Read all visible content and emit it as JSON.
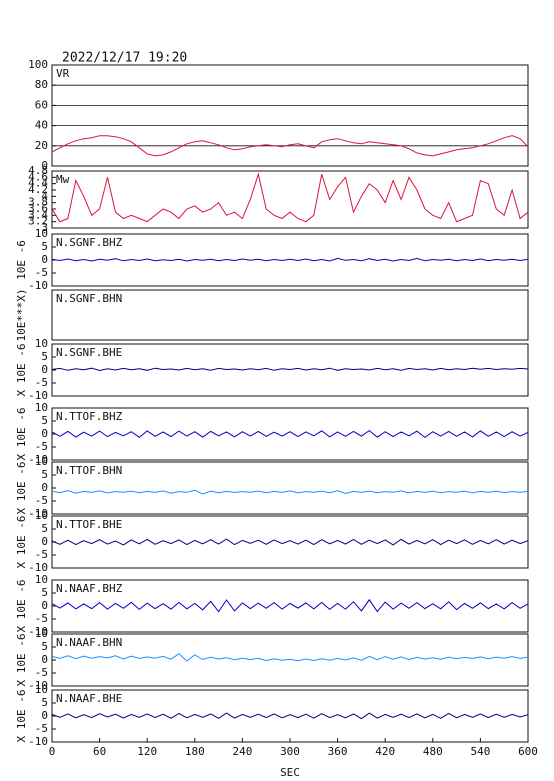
{
  "chart_data": [
    {
      "type": "line",
      "title": "2022/12/17 19:20",
      "label": "VR",
      "color": "#dc143c",
      "grid": true,
      "xlim": [
        0,
        600
      ],
      "ylim": [
        0,
        100
      ],
      "yticks": [
        0,
        20,
        40,
        60,
        80,
        100
      ],
      "x": [
        0,
        10,
        20,
        30,
        40,
        50,
        60,
        70,
        80,
        90,
        100,
        110,
        120,
        130,
        140,
        150,
        160,
        170,
        180,
        190,
        200,
        210,
        220,
        230,
        240,
        250,
        260,
        270,
        280,
        290,
        300,
        310,
        320,
        330,
        340,
        350,
        360,
        370,
        380,
        390,
        400,
        410,
        420,
        430,
        440,
        450,
        460,
        470,
        480,
        490,
        500,
        510,
        520,
        530,
        540,
        550,
        560,
        570,
        580,
        590,
        600
      ],
      "values": [
        14,
        18,
        22,
        25,
        27,
        28,
        30,
        30,
        29,
        27,
        24,
        18,
        12,
        10,
        11,
        14,
        18,
        22,
        24,
        25,
        23,
        21,
        18,
        16,
        17,
        19,
        20,
        21,
        20,
        19,
        21,
        22,
        20,
        18,
        24,
        26,
        27,
        25,
        23,
        22,
        24,
        23,
        22,
        21,
        20,
        17,
        13,
        11,
        10,
        12,
        14,
        16,
        17,
        18,
        20,
        22,
        25,
        28,
        30,
        27,
        19
      ]
    },
    {
      "type": "line",
      "label": "Mw",
      "color": "#dc143c",
      "xlim": [
        0,
        600
      ],
      "ylim": [
        3.0,
        4.8
      ],
      "yticks": [
        3.0,
        3.2,
        3.4,
        3.6,
        3.8,
        4.0,
        4.2,
        4.4,
        4.6,
        4.8
      ],
      "x": [
        0,
        10,
        20,
        30,
        40,
        50,
        60,
        70,
        80,
        90,
        100,
        110,
        120,
        130,
        140,
        150,
        160,
        170,
        180,
        190,
        200,
        210,
        220,
        230,
        240,
        250,
        260,
        270,
        280,
        290,
        300,
        310,
        320,
        330,
        340,
        350,
        360,
        370,
        380,
        390,
        400,
        410,
        420,
        430,
        440,
        450,
        460,
        470,
        480,
        490,
        500,
        510,
        520,
        530,
        540,
        550,
        560,
        570,
        580,
        590,
        600
      ],
      "values": [
        3.6,
        3.2,
        3.3,
        4.5,
        4.0,
        3.4,
        3.6,
        4.6,
        3.5,
        3.3,
        3.4,
        3.3,
        3.2,
        3.4,
        3.6,
        3.5,
        3.3,
        3.6,
        3.7,
        3.5,
        3.6,
        3.8,
        3.4,
        3.5,
        3.3,
        3.9,
        4.7,
        3.6,
        3.4,
        3.3,
        3.5,
        3.3,
        3.2,
        3.4,
        4.7,
        3.9,
        4.3,
        4.6,
        3.5,
        4.0,
        4.4,
        4.2,
        3.8,
        4.5,
        3.9,
        4.6,
        4.2,
        3.6,
        3.4,
        3.3,
        3.8,
        3.2,
        3.3,
        3.4,
        4.5,
        4.4,
        3.6,
        3.4,
        4.2,
        3.3,
        3.5
      ]
    },
    {
      "type": "line",
      "label": "N.SGNF.BHZ",
      "ylabel": "10E -6",
      "color": "#0000cd",
      "xlim": [
        0,
        600
      ],
      "ylim": [
        -10,
        10
      ],
      "yticks": [
        -10,
        -5,
        0,
        5,
        10
      ],
      "x": [
        0,
        10,
        20,
        30,
        40,
        50,
        60,
        70,
        80,
        90,
        100,
        110,
        120,
        130,
        140,
        150,
        160,
        170,
        180,
        190,
        200,
        210,
        220,
        230,
        240,
        250,
        260,
        270,
        280,
        290,
        300,
        310,
        320,
        330,
        340,
        350,
        360,
        370,
        380,
        390,
        400,
        410,
        420,
        430,
        440,
        450,
        460,
        470,
        480,
        490,
        500,
        510,
        520,
        530,
        540,
        550,
        560,
        570,
        580,
        590,
        600
      ],
      "values": [
        0.3,
        -0.2,
        0.4,
        -0.3,
        0.2,
        -0.4,
        0.3,
        -0.1,
        0.5,
        -0.3,
        0.2,
        -0.2,
        0.4,
        -0.3,
        0.1,
        -0.2,
        0.3,
        -0.4,
        0.2,
        -0.1,
        0.3,
        -0.3,
        0.2,
        -0.2,
        0.4,
        -0.1,
        0.3,
        -0.3,
        0.2,
        -0.2,
        0.3,
        -0.2,
        0.4,
        -0.3,
        0.2,
        -0.4,
        0.6,
        -0.1,
        0.2,
        -0.3,
        0.5,
        -0.2,
        0.3,
        -0.4,
        0.2,
        -0.2,
        0.6,
        -0.3,
        0.2,
        -0.1,
        0.3,
        -0.3,
        0.2,
        -0.2,
        0.4,
        -0.3,
        0.2,
        -0.1,
        0.3,
        -0.2,
        0.3
      ]
    },
    {
      "type": "line",
      "label": "N.SGNF.BHN",
      "ylabel": "10E***X)",
      "xlim": [
        0,
        600
      ]
    },
    {
      "type": "line",
      "label": "N.SGNF.BHE",
      "ylabel": "X 10E -6",
      "color": "#000080",
      "xlim": [
        0,
        600
      ],
      "ylim": [
        -10,
        10
      ],
      "yticks": [
        -10,
        -5,
        0,
        5,
        10
      ],
      "x": [
        0,
        10,
        20,
        30,
        40,
        50,
        60,
        70,
        80,
        90,
        100,
        110,
        120,
        130,
        140,
        150,
        160,
        170,
        180,
        190,
        200,
        210,
        220,
        230,
        240,
        250,
        260,
        270,
        280,
        290,
        300,
        310,
        320,
        330,
        340,
        350,
        360,
        370,
        380,
        390,
        400,
        410,
        420,
        430,
        440,
        450,
        460,
        470,
        480,
        490,
        500,
        510,
        520,
        530,
        540,
        550,
        560,
        570,
        580,
        590,
        600
      ],
      "values": [
        0.2,
        0.6,
        -0.1,
        0.5,
        0.1,
        0.7,
        -0.2,
        0.5,
        0.0,
        0.6,
        0.1,
        0.5,
        -0.1,
        0.7,
        0.2,
        0.4,
        0.0,
        0.6,
        0.1,
        0.5,
        -0.1,
        0.6,
        0.2,
        0.4,
        0.0,
        0.5,
        0.1,
        0.6,
        -0.1,
        0.5,
        0.2,
        0.6,
        0.0,
        0.5,
        0.1,
        0.7,
        -0.1,
        0.5,
        0.2,
        0.4,
        0.0,
        0.6,
        0.1,
        0.5,
        -0.1,
        0.6,
        0.2,
        0.5,
        0.0,
        0.6,
        0.1,
        0.5,
        0.2,
        0.7,
        0.3,
        0.6,
        0.2,
        0.5,
        0.3,
        0.6,
        0.4
      ]
    },
    {
      "type": "line",
      "label": "N.TTOF.BHZ",
      "ylabel": "X 10E -6",
      "color": "#0000cd",
      "xlim": [
        0,
        600
      ],
      "ylim": [
        -10,
        10
      ],
      "yticks": [
        -10,
        -5,
        0,
        5,
        10
      ],
      "x": [
        0,
        10,
        20,
        30,
        40,
        50,
        60,
        70,
        80,
        90,
        100,
        110,
        120,
        130,
        140,
        150,
        160,
        170,
        180,
        190,
        200,
        210,
        220,
        230,
        240,
        250,
        260,
        270,
        280,
        290,
        300,
        310,
        320,
        330,
        340,
        350,
        360,
        370,
        380,
        390,
        400,
        410,
        420,
        430,
        440,
        450,
        460,
        470,
        480,
        490,
        500,
        510,
        520,
        530,
        540,
        550,
        560,
        570,
        580,
        590,
        600
      ],
      "values": [
        0.8,
        -0.9,
        1.0,
        -1.2,
        0.7,
        -0.8,
        1.1,
        -1.0,
        0.6,
        -0.7,
        0.9,
        -1.3,
        1.2,
        -0.9,
        0.8,
        -1.0,
        1.1,
        -0.8,
        0.9,
        -1.2,
        1.0,
        -0.7,
        0.8,
        -1.1,
        0.9,
        -0.8,
        1.0,
        -0.9,
        0.7,
        -0.8,
        0.9,
        -1.0,
        0.8,
        -0.7,
        1.2,
        -1.1,
        0.8,
        -0.9,
        1.0,
        -0.8,
        1.3,
        -1.2,
        0.9,
        -1.0,
        0.8,
        -0.7,
        1.1,
        -1.3,
        0.9,
        -0.8,
        1.0,
        -0.9,
        0.8,
        -1.1,
        1.2,
        -0.9,
        0.8,
        -1.0,
        0.9,
        -0.8,
        0.6
      ]
    },
    {
      "type": "line",
      "label": "N.TTOF.BHN",
      "ylabel": "X 10E -6",
      "color": "#1e90ff",
      "xlim": [
        0,
        600
      ],
      "ylim": [
        -10,
        10
      ],
      "yticks": [
        -10,
        -5,
        0,
        5,
        10
      ],
      "x": [
        0,
        10,
        20,
        30,
        40,
        50,
        60,
        70,
        80,
        90,
        100,
        110,
        120,
        130,
        140,
        150,
        160,
        170,
        180,
        190,
        200,
        210,
        220,
        230,
        240,
        250,
        260,
        270,
        280,
        290,
        300,
        310,
        320,
        330,
        340,
        350,
        360,
        370,
        380,
        390,
        400,
        410,
        420,
        430,
        440,
        450,
        460,
        470,
        480,
        490,
        500,
        510,
        520,
        530,
        540,
        550,
        560,
        570,
        580,
        590,
        600
      ],
      "values": [
        -1.2,
        -1.8,
        -1.0,
        -2.0,
        -1.3,
        -1.7,
        -1.1,
        -1.9,
        -1.4,
        -1.6,
        -1.2,
        -1.8,
        -1.3,
        -1.7,
        -1.1,
        -2.0,
        -1.4,
        -1.6,
        -0.9,
        -2.3,
        -1.2,
        -1.8,
        -1.3,
        -1.7,
        -1.4,
        -1.6,
        -1.2,
        -1.8,
        -1.3,
        -1.7,
        -1.1,
        -1.9,
        -1.4,
        -1.6,
        -1.2,
        -1.8,
        -1.0,
        -2.1,
        -1.3,
        -1.7,
        -1.2,
        -1.8,
        -1.4,
        -1.6,
        -1.1,
        -1.9,
        -1.3,
        -1.7,
        -1.2,
        -1.8,
        -1.4,
        -1.6,
        -1.2,
        -1.9,
        -1.3,
        -1.7,
        -1.2,
        -1.8,
        -1.4,
        -1.6,
        -1.3
      ]
    },
    {
      "type": "line",
      "label": "N.TTOF.BHE",
      "ylabel": "X 10E -6",
      "color": "#000080",
      "xlim": [
        0,
        600
      ],
      "ylim": [
        -10,
        10
      ],
      "yticks": [
        -10,
        -5,
        0,
        5,
        10
      ],
      "x": [
        0,
        10,
        20,
        30,
        40,
        50,
        60,
        70,
        80,
        90,
        100,
        110,
        120,
        130,
        140,
        150,
        160,
        170,
        180,
        190,
        200,
        210,
        220,
        230,
        240,
        250,
        260,
        270,
        280,
        290,
        300,
        310,
        320,
        330,
        340,
        350,
        360,
        370,
        380,
        390,
        400,
        410,
        420,
        430,
        440,
        450,
        460,
        470,
        480,
        490,
        500,
        510,
        520,
        530,
        540,
        550,
        560,
        570,
        580,
        590,
        600
      ],
      "values": [
        0.4,
        -0.9,
        0.7,
        -1.0,
        0.5,
        -0.6,
        0.9,
        -0.8,
        0.4,
        -1.1,
        0.8,
        -0.7,
        1.0,
        -0.9,
        0.5,
        -0.6,
        0.8,
        -1.0,
        0.6,
        -0.7,
        0.9,
        -0.8,
        1.1,
        -1.0,
        0.6,
        -0.5,
        0.7,
        -0.9,
        0.8,
        -0.6,
        0.5,
        -0.8,
        0.7,
        -1.0,
        0.9,
        -0.7,
        0.6,
        -0.8,
        1.0,
        -0.9,
        0.7,
        -0.6,
        0.8,
        -1.1,
        1.0,
        -0.8,
        0.6,
        -0.7,
        0.9,
        -1.0,
        0.7,
        -0.6,
        0.8,
        -0.9,
        0.6,
        -0.7,
        0.9,
        -0.8,
        0.7,
        -0.6,
        0.5
      ]
    },
    {
      "type": "line",
      "label": "N.NAAF.BHZ",
      "ylabel": "X 10E -6",
      "color": "#0000cd",
      "xlim": [
        0,
        600
      ],
      "ylim": [
        -10,
        10
      ],
      "yticks": [
        -10,
        -5,
        0,
        5,
        10
      ],
      "x": [
        0,
        10,
        20,
        30,
        40,
        50,
        60,
        70,
        80,
        90,
        100,
        110,
        120,
        130,
        140,
        150,
        160,
        170,
        180,
        190,
        200,
        210,
        220,
        230,
        240,
        250,
        260,
        270,
        280,
        290,
        300,
        310,
        320,
        330,
        340,
        350,
        360,
        370,
        380,
        390,
        400,
        410,
        420,
        430,
        440,
        450,
        460,
        470,
        480,
        490,
        500,
        510,
        520,
        530,
        540,
        550,
        560,
        570,
        580,
        590,
        600
      ],
      "values": [
        0.9,
        -0.8,
        1.2,
        -1.1,
        0.8,
        -1.0,
        1.3,
        -1.2,
        1.0,
        -0.9,
        1.4,
        -1.3,
        1.1,
        -1.0,
        0.9,
        -1.2,
        1.4,
        -1.1,
        1.0,
        -1.5,
        1.8,
        -2.2,
        2.3,
        -1.9,
        1.2,
        -1.0,
        1.1,
        -0.9,
        1.3,
        -1.2,
        1.0,
        -0.8,
        1.2,
        -1.1,
        1.4,
        -1.3,
        1.0,
        -1.2,
        1.6,
        -1.9,
        2.4,
        -2.1,
        1.5,
        -1.2,
        1.1,
        -0.9,
        1.3,
        -1.0,
        0.9,
        -1.1,
        1.6,
        -1.4,
        1.0,
        -0.9,
        1.2,
        -1.0,
        0.8,
        -1.1,
        1.3,
        -0.9,
        0.8
      ]
    },
    {
      "type": "line",
      "label": "N.NAAF.BHN",
      "ylabel": "X 10E -6",
      "color": "#1e90ff",
      "xlim": [
        0,
        600
      ],
      "ylim": [
        -10,
        10
      ],
      "yticks": [
        -10,
        -5,
        0,
        5,
        10
      ],
      "x": [
        0,
        10,
        20,
        30,
        40,
        50,
        60,
        70,
        80,
        90,
        100,
        110,
        120,
        130,
        140,
        150,
        160,
        170,
        180,
        190,
        200,
        210,
        220,
        230,
        240,
        250,
        260,
        270,
        280,
        290,
        300,
        310,
        320,
        330,
        340,
        350,
        360,
        370,
        380,
        390,
        400,
        410,
        420,
        430,
        440,
        450,
        460,
        470,
        480,
        490,
        500,
        510,
        520,
        530,
        540,
        550,
        560,
        570,
        580,
        590,
        600
      ],
      "values": [
        1.4,
        0.6,
        1.6,
        0.5,
        1.5,
        0.7,
        1.3,
        0.8,
        1.6,
        0.4,
        1.5,
        0.6,
        1.2,
        0.7,
        1.4,
        0.3,
        2.4,
        -0.4,
        2.0,
        0.2,
        1.1,
        0.4,
        0.9,
        0.1,
        0.7,
        0.2,
        0.6,
        -0.2,
        0.5,
        -0.1,
        0.3,
        -0.3,
        0.4,
        -0.2,
        0.5,
        -0.1,
        0.6,
        0.0,
        0.8,
        -0.1,
        1.4,
        0.1,
        1.3,
        0.3,
        1.2,
        0.2,
        1.0,
        0.4,
        0.9,
        0.3,
        1.1,
        0.5,
        1.0,
        0.6,
        1.2,
        0.5,
        1.1,
        0.7,
        1.3,
        0.6,
        1.1
      ]
    },
    {
      "type": "line",
      "label": "N.NAAF.BHE",
      "ylabel": "X 10E -6",
      "color": "#000080",
      "xlim": [
        0,
        600
      ],
      "ylim": [
        -10,
        10
      ],
      "yticks": [
        -10,
        -5,
        0,
        5,
        10
      ],
      "xticks": [
        0,
        60,
        120,
        180,
        240,
        300,
        360,
        420,
        480,
        540,
        600
      ],
      "xlabel": "SEC",
      "x": [
        0,
        10,
        20,
        30,
        40,
        50,
        60,
        70,
        80,
        90,
        100,
        110,
        120,
        130,
        140,
        150,
        160,
        170,
        180,
        190,
        200,
        210,
        220,
        230,
        240,
        250,
        260,
        270,
        280,
        290,
        300,
        310,
        320,
        330,
        340,
        350,
        360,
        370,
        380,
        390,
        400,
        410,
        420,
        430,
        440,
        450,
        460,
        470,
        480,
        490,
        500,
        510,
        520,
        530,
        540,
        550,
        560,
        570,
        580,
        590,
        600
      ],
      "values": [
        0.6,
        -0.5,
        0.8,
        -0.7,
        0.5,
        -0.6,
        0.9,
        -0.4,
        0.7,
        -0.8,
        0.6,
        -0.5,
        0.8,
        -0.6,
        0.7,
        -0.9,
        1.0,
        -0.7,
        0.6,
        -0.5,
        0.8,
        -0.9,
        1.1,
        -0.8,
        0.6,
        -0.5,
        0.7,
        -0.6,
        0.8,
        -0.7,
        0.5,
        -0.6,
        0.7,
        -0.8,
        0.9,
        -0.6,
        0.5,
        -0.7,
        0.8,
        -1.0,
        1.1,
        -0.8,
        0.6,
        -0.5,
        0.7,
        -0.6,
        0.8,
        -0.7,
        0.6,
        -0.9,
        1.0,
        -0.7,
        0.6,
        -0.5,
        0.8,
        -0.6,
        0.7,
        -0.5,
        0.6,
        -0.4,
        0.5
      ]
    }
  ]
}
